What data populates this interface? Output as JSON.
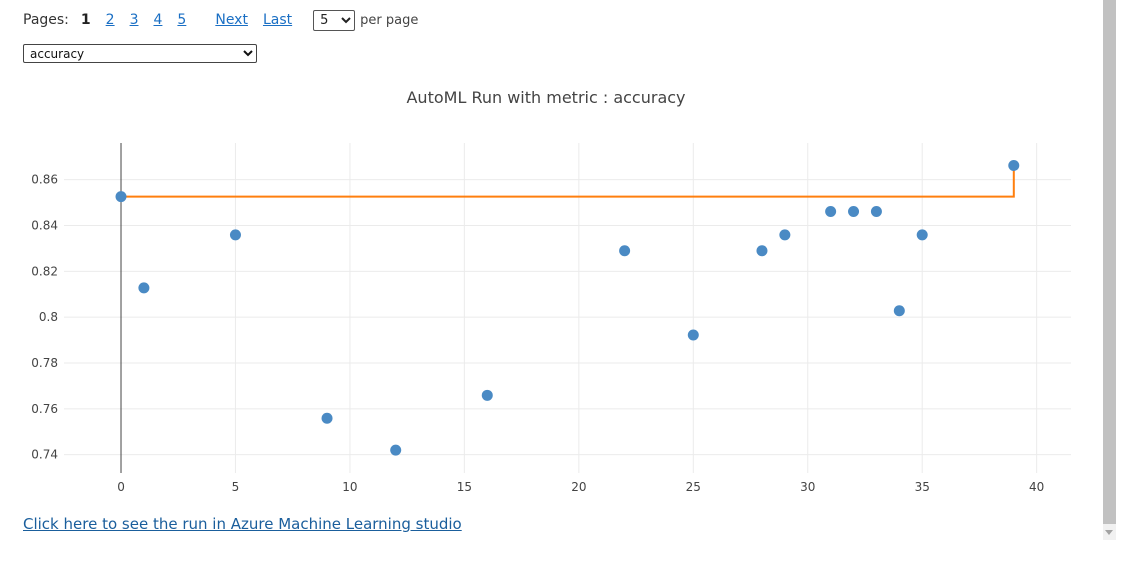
{
  "pager": {
    "label": "Pages:",
    "current": "1",
    "pages": [
      "2",
      "3",
      "4",
      "5"
    ],
    "next_label": "Next",
    "last_label": "Last",
    "per_page_value": "5",
    "per_page_label": "per page"
  },
  "metric_select": {
    "value": "accuracy"
  },
  "studio_link": {
    "text": "Click here to see the run in Azure Machine Learning studio"
  },
  "chart_data": {
    "type": "scatter",
    "title": "AutoML Run with metric : accuracy",
    "xlabel": "",
    "ylabel": "",
    "xlim": [
      -4.5,
      41.5
    ],
    "ylim": [
      0.732,
      0.876
    ],
    "x_ticks": [
      0,
      5,
      10,
      15,
      20,
      25,
      30,
      35,
      40
    ],
    "y_ticks": [
      0.74,
      0.76,
      0.78,
      0.8,
      0.82,
      0.84,
      0.86
    ],
    "y_tick_labels": [
      "0.74",
      "0.76",
      "0.78",
      "0.8",
      "0.82",
      "0.84",
      "0.86"
    ],
    "grid": true,
    "legend": "none",
    "series": [
      {
        "kind": "points",
        "color": "#4a8ac4",
        "x": [
          0,
          1,
          5,
          9,
          12,
          16,
          22,
          25,
          28,
          29,
          31,
          32,
          33,
          34,
          35,
          39
        ],
        "y": [
          0.8526,
          0.8128,
          0.8359,
          0.7559,
          0.742,
          0.7659,
          0.829,
          0.7922,
          0.829,
          0.8359,
          0.8461,
          0.8461,
          0.8461,
          0.8028,
          0.8359,
          0.8662
        ]
      },
      {
        "kind": "best-so-far-line",
        "color": "#ff7f0e",
        "x": [
          0,
          39,
          39
        ],
        "y": [
          0.8526,
          0.8526,
          0.8662
        ]
      }
    ]
  }
}
